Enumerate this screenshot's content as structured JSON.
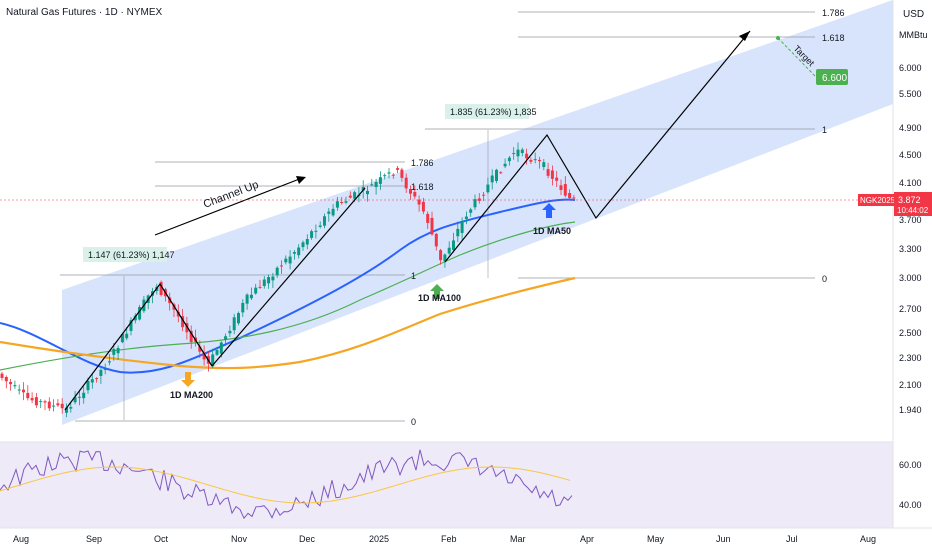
{
  "header": {
    "title": "Natural Gas Futures · 1D · NYMEX"
  },
  "axis": {
    "currency": "USD",
    "unit": "MMBtu",
    "price_ticks": [
      "6.000",
      "5.500",
      "4.900",
      "4.500",
      "4.100",
      "3.700",
      "3.300",
      "3.000",
      "2.700",
      "2.500",
      "2.300",
      "2.100",
      "1.940"
    ],
    "rsi_ticks": [
      "60.00",
      "40.00"
    ],
    "x_ticks": [
      "Aug",
      "Sep",
      "Oct",
      "Nov",
      "Dec",
      "2025",
      "Feb",
      "Mar",
      "Apr",
      "May",
      "Jun",
      "Jul",
      "Aug"
    ]
  },
  "colors": {
    "up": "#089981",
    "down": "#f23645",
    "ma50": "#2962ff",
    "ma100": "#4caf50",
    "ma200": "#f5a623",
    "channel": "#b8cdfa",
    "rsi": "#7e57c2",
    "rsi_ma": "#f7c744",
    "target_badge": "#4caf50",
    "price_badge": "#f23645"
  },
  "fib_right": {
    "l1": "1.786",
    "l2": "1.618",
    "l3": "1",
    "l4": "0"
  },
  "fib_mid": {
    "l1": "1.786",
    "l2": "1.618",
    "l3": "1",
    "l4": "0"
  },
  "annotations": {
    "channel_up": "Channel Up",
    "fib_box_left": "1.147 (61.23%) 1,147",
    "fib_box_right": "1.835 (61.23%) 1,835",
    "ma200": "1D MA200",
    "ma100": "1D MA100",
    "ma50": "1D MA50",
    "target": "Target",
    "target_value": "6.600"
  },
  "price_badge": {
    "symbol": "NGK2025",
    "price": "3.872",
    "countdown": "10:44:02"
  },
  "chart_data": {
    "type": "line",
    "series": [
      {
        "name": "NGK2025",
        "x": [
          "Aug",
          "Sep",
          "Oct",
          "Nov",
          "Dec",
          "2025",
          "Feb",
          "Mar"
        ],
        "values": [
          2.25,
          2.05,
          2.95,
          2.25,
          3.45,
          3.95,
          3.15,
          4.55
        ]
      }
    ],
    "x_ticks": [
      "Aug",
      "Sep",
      "Oct",
      "Nov",
      "Dec",
      "2025",
      "Feb",
      "Mar",
      "Apr",
      "May",
      "Jun",
      "Jul",
      "Aug"
    ],
    "last_price": 3.872,
    "target": 6.6
  }
}
